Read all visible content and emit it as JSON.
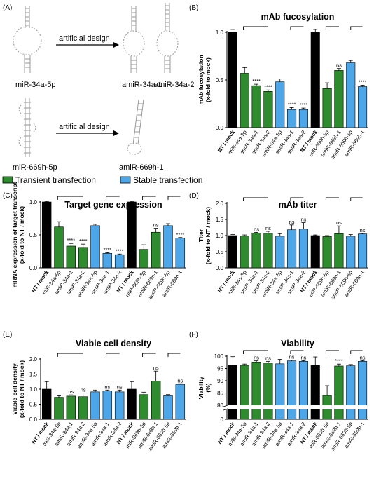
{
  "panel_labels": {
    "A": "(A)",
    "B": "(B)",
    "C": "(C)",
    "D": "(D)",
    "E": "(E)",
    "F": "(F)"
  },
  "schematic": {
    "arrow_label_1": "artificial design",
    "arrow_label_2": "artificial design",
    "rna_1": "miR-34a-5p",
    "rna_2": "amiR-34a-1",
    "rna_3": "amiR-34a-2",
    "rna_4": "miR-669h-5p",
    "rna_5": "amiR-669h-1"
  },
  "legend": {
    "transient": "Transient transfection",
    "stable": "Stable transfection"
  },
  "colors": {
    "mock": "#000000",
    "transient": "#2e8b2e",
    "stable": "#4da6e8"
  },
  "chart_data": [
    {
      "id": "B",
      "type": "bar",
      "title": "mAb fucosylation",
      "ylabel": "mAb fucosylation\n(x-fold to mock)",
      "ylim": [
        0,
        1.0
      ],
      "yticks": [
        "0.0",
        "0.5",
        "1.0"
      ],
      "categories": [
        "NT / mock",
        "miR-34a-5p",
        "amiR-34a-1",
        "amiR-34a-2",
        "amiR-34a-5p",
        "amiR-34a-1",
        "amiR-34a-2",
        "NT / mock",
        "miR-669h-5p",
        "amiR-669h-1",
        "amiR-669h-5p",
        "amiR-669h-1"
      ],
      "groups": [
        "mock",
        "transient",
        "transient",
        "transient",
        "stable",
        "stable",
        "stable",
        "mock",
        "transient",
        "transient",
        "stable",
        "stable"
      ],
      "values": [
        1.0,
        0.57,
        0.44,
        0.38,
        0.48,
        0.19,
        0.19,
        1.0,
        0.41,
        0.6,
        0.68,
        0.43
      ],
      "errors": [
        0.03,
        0.06,
        0.015,
        0.015,
        0.03,
        0.02,
        0.015,
        0.03,
        0.06,
        0.02,
        0.025,
        0.015
      ],
      "annotations": [
        "",
        "",
        "****",
        "****",
        "",
        "****",
        "****",
        "",
        "",
        "ns",
        "",
        "****"
      ]
    },
    {
      "id": "C",
      "type": "bar",
      "title": "Target gene expression",
      "ylabel": "mRNA expression of target transcript\n(x-fold to NT / mock)",
      "ylim": [
        0,
        1.0
      ],
      "yticks": [
        "0.0",
        "0.5",
        "1.0"
      ],
      "categories": [
        "NT / mock",
        "miR-34a-5p",
        "amiR-34a-1",
        "amiR-34a-2",
        "amiR-34a-5p",
        "amiR-34a-1",
        "amiR-34a-2",
        "NT / mock",
        "miR-669h-5p",
        "amiR-669h-1",
        "amiR-669h-5p",
        "amiR-669h-1"
      ],
      "groups": [
        "mock",
        "transient",
        "transient",
        "transient",
        "stable",
        "stable",
        "stable",
        "mock",
        "transient",
        "transient",
        "stable",
        "stable"
      ],
      "values": [
        1.0,
        0.62,
        0.33,
        0.31,
        0.64,
        0.22,
        0.2,
        1.0,
        0.28,
        0.54,
        0.64,
        0.45
      ],
      "errors": [
        0.01,
        0.08,
        0.04,
        0.05,
        0.02,
        0.01,
        0.01,
        0.01,
        0.07,
        0.06,
        0.03,
        0.01
      ],
      "annotations": [
        "",
        "",
        "****",
        "****",
        "",
        "****",
        "****",
        "",
        "",
        "ns",
        "",
        "****"
      ]
    },
    {
      "id": "D",
      "type": "bar",
      "title": "mAb titer",
      "ylabel": "Titer\n(x-fold to NT / mock)",
      "ylim": [
        0,
        2.0
      ],
      "yticks": [
        "0.0",
        "0.5",
        "1.0",
        "1.5",
        "2.0"
      ],
      "categories": [
        "NT / mock",
        "miR-34a-5p",
        "amiR-34a-1",
        "amiR-34a-2",
        "amiR-34a-5p",
        "amiR-34a-1",
        "amiR-34a-2",
        "NT / mock",
        "miR-669h-5p",
        "amiR-669h-1",
        "amiR-669h-5p",
        "amiR-669h-1"
      ],
      "groups": [
        "mock",
        "transient",
        "transient",
        "transient",
        "stable",
        "stable",
        "stable",
        "mock",
        "transient",
        "transient",
        "stable",
        "stable"
      ],
      "values": [
        1.0,
        0.99,
        1.08,
        1.07,
        0.98,
        1.18,
        1.2,
        1.0,
        0.97,
        1.06,
        0.98,
        1.05
      ],
      "errors": [
        0.03,
        0.03,
        0.02,
        0.06,
        0.08,
        0.15,
        0.2,
        0.02,
        0.03,
        0.24,
        0.05,
        0.02
      ],
      "annotations": [
        "",
        "",
        "ns",
        "ns",
        "",
        "ns",
        "ns",
        "",
        "",
        "ns",
        "",
        "ns"
      ]
    },
    {
      "id": "E",
      "type": "bar",
      "title": "Viable cell density",
      "ylabel": "Viable cell density\n(x-fold to NT / mock)",
      "ylim": [
        0,
        2.0
      ],
      "yticks": [
        "0.0",
        "0.5",
        "1.0",
        "1.5",
        "2.0"
      ],
      "categories": [
        "NT / mock",
        "miR-34a-5p",
        "amiR-34a-1",
        "amiR-34a-2",
        "amiR-34a-5p",
        "amiR-34a-1",
        "amiR-34a-2",
        "NT / mock",
        "miR-669h-5p",
        "amiR-669h-1",
        "amiR-669h-5p",
        "amiR-669h-1"
      ],
      "groups": [
        "mock",
        "transient",
        "transient",
        "transient",
        "stable",
        "stable",
        "stable",
        "mock",
        "transient",
        "transient",
        "stable",
        "stable"
      ],
      "values": [
        1.0,
        0.73,
        0.77,
        0.75,
        0.91,
        0.94,
        0.91,
        1.0,
        0.82,
        1.27,
        0.78,
        1.16
      ],
      "errors": [
        0.25,
        0.05,
        0.04,
        0.12,
        0.06,
        0.03,
        0.06,
        0.25,
        0.08,
        0.33,
        0.04,
        0.02
      ],
      "annotations": [
        "",
        "",
        "ns",
        "ns",
        "",
        "ns",
        "ns",
        "",
        "",
        "ns",
        "",
        "ns"
      ]
    },
    {
      "id": "F",
      "type": "bar",
      "title": "Viability",
      "ylabel": "Viability\n(%)",
      "ylim": [
        0,
        100
      ],
      "yticks": [
        "0",
        "80",
        "85",
        "90",
        "95",
        "100"
      ],
      "axis_break": [
        20,
        80
      ],
      "categories": [
        "NT / mock",
        "miR-34a-5p",
        "amiR-34a-1",
        "amiR-34a-2",
        "amiR-34a-5p",
        "amiR-34a-1",
        "amiR-34a-2",
        "NT / mock",
        "miR-669h-5p",
        "amiR-669h-1",
        "amiR-669h-5p",
        "amiR-669h-1"
      ],
      "groups": [
        "mock",
        "transient",
        "transient",
        "transient",
        "stable",
        "stable",
        "stable",
        "mock",
        "transient",
        "transient",
        "stable",
        "stable"
      ],
      "values": [
        96.3,
        96.3,
        97.6,
        97.2,
        96.9,
        98.1,
        97.9,
        96.2,
        84.0,
        96.0,
        96.1,
        97.9
      ],
      "errors": [
        3.5,
        0.5,
        0.5,
        0.7,
        1.8,
        0.3,
        0.3,
        3.5,
        4.0,
        0.8,
        0.5,
        0.3
      ],
      "annotations": [
        "",
        "",
        "ns",
        "ns",
        "",
        "ns",
        "ns",
        "",
        "",
        "****",
        "",
        "ns"
      ]
    }
  ]
}
